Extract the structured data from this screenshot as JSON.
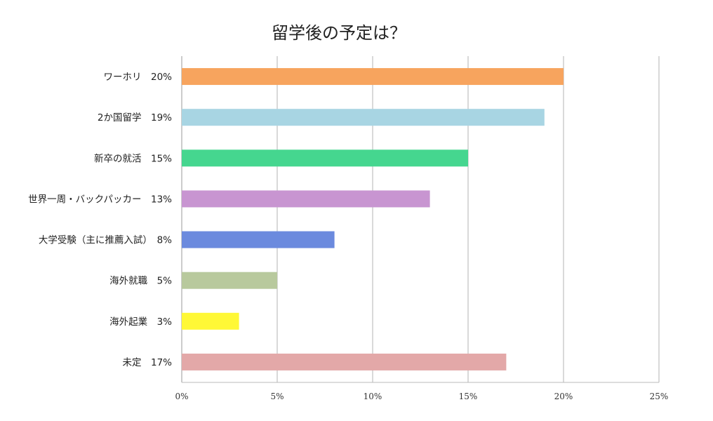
{
  "chart_data": {
    "type": "bar",
    "orientation": "horizontal",
    "title": "留学後の予定は？",
    "categories": [
      "ワーホリ　20%",
      "2か国留学　19%",
      "新卒の就活　15%",
      "世界一周・バックパッカー　13%",
      "大学受験（主に推薦入試）　8%",
      "海外就職　5%",
      "海外起業　3%",
      "未定　17%"
    ],
    "values": [
      20,
      19,
      15,
      13,
      8,
      5,
      3,
      17
    ],
    "colors": [
      "#f7a45e",
      "#a8d5e3",
      "#45d68f",
      "#c895d1",
      "#6b8ade",
      "#b8c99d",
      "#fff836",
      "#e3a8a8"
    ],
    "xlim": [
      0,
      25
    ],
    "xticks": [
      0,
      5,
      10,
      15,
      20,
      25
    ],
    "xtick_labels": [
      "0%",
      "5%",
      "10%",
      "15%",
      "20%",
      "25%"
    ],
    "xlabel": "",
    "ylabel": "",
    "grid": "vertical",
    "legend": "none"
  }
}
